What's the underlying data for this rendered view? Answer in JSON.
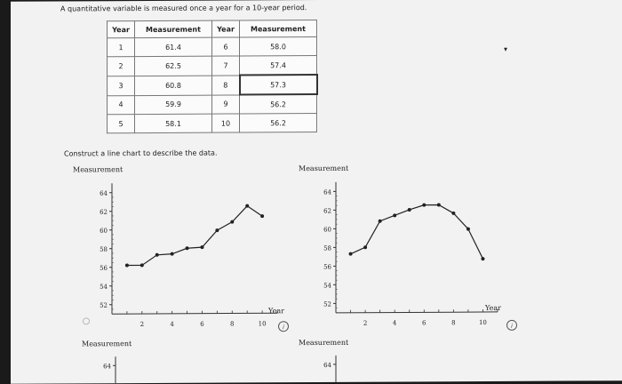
{
  "prompt": "A quantitative variable is measured once a year for a 10-year period.",
  "table": {
    "headers": [
      "Year",
      "Measurement",
      "Year",
      "Measurement"
    ],
    "rows": [
      [
        "1",
        "61.4",
        "6",
        "58.0"
      ],
      [
        "2",
        "62.5",
        "7",
        "57.4"
      ],
      [
        "3",
        "60.8",
        "8",
        "57.3"
      ],
      [
        "4",
        "59.9",
        "9",
        "56.2"
      ],
      [
        "5",
        "58.1",
        "10",
        "56.2"
      ]
    ]
  },
  "construct_text": "Construct a line chart to describe the data.",
  "chart_data": [
    {
      "type": "line",
      "ylabel": "Measurement",
      "xlabel": "Year",
      "yticks": [
        "64",
        "62",
        "60",
        "58",
        "56",
        "54",
        "52"
      ],
      "xticks": [
        "2",
        "4",
        "6",
        "8",
        "10"
      ],
      "ylim": [
        51,
        65
      ],
      "xlim": [
        0,
        11
      ],
      "x": [
        1,
        2,
        3,
        4,
        5,
        6,
        7,
        8,
        9,
        10
      ],
      "values": [
        56.2,
        56.2,
        57.3,
        57.4,
        58.0,
        58.1,
        59.9,
        60.8,
        62.5,
        61.4
      ]
    },
    {
      "type": "line",
      "ylabel": "Measurement",
      "xlabel": "Year",
      "yticks": [
        "64",
        "62",
        "60",
        "58",
        "56",
        "54",
        "52"
      ],
      "xticks": [
        "2",
        "4",
        "6",
        "8",
        "10"
      ],
      "ylim": [
        51,
        65
      ],
      "xlim": [
        0,
        11
      ],
      "x": [
        1,
        2,
        3,
        4,
        5,
        6,
        7,
        8,
        9,
        10
      ],
      "values": [
        57.3,
        58.0,
        60.8,
        61.4,
        62.0,
        62.5,
        62.5,
        61.6,
        59.9,
        56.7
      ]
    },
    {
      "type": "line",
      "ylabel": "Measurement",
      "yticks": [
        "64"
      ]
    },
    {
      "type": "line",
      "ylabel": "Measurement",
      "yticks": [
        "64"
      ]
    }
  ],
  "cursor_mark": "▾",
  "info_icon": "info-icon"
}
